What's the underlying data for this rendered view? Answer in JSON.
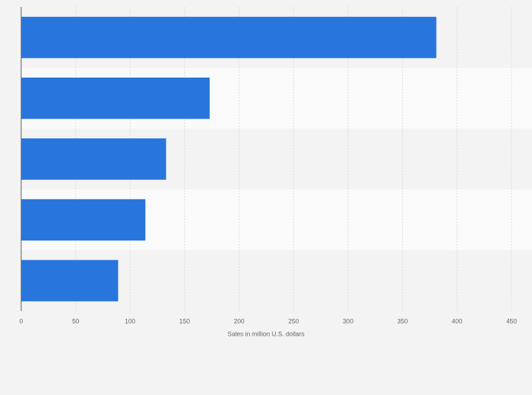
{
  "chart_data": {
    "type": "bar",
    "orientation": "horizontal",
    "categories": [
      null,
      null,
      null,
      null,
      null
    ],
    "values": [
      381,
      173,
      133,
      114,
      89
    ],
    "color": "#2876dd",
    "xlabel": "Sales in million U.S. dollars",
    "xlim": [
      0,
      450
    ],
    "xticks": [
      0,
      50,
      100,
      150,
      200,
      250,
      300,
      350,
      400,
      450
    ],
    "grid": true
  }
}
